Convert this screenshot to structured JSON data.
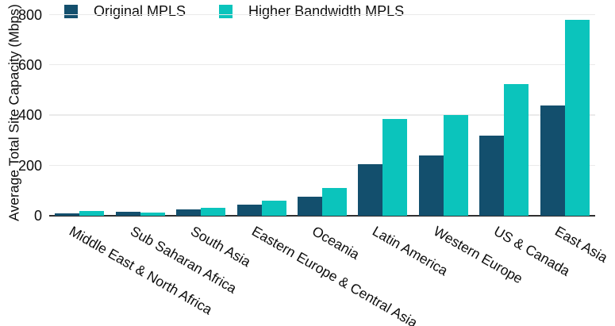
{
  "chart_data": {
    "type": "bar",
    "title": "",
    "xlabel": "",
    "ylabel": "Average Total Site Capacity (Mbps)",
    "ylim": [
      0,
      800
    ],
    "yticks": [
      0,
      200,
      400,
      600,
      800
    ],
    "grid": "horizontal",
    "legend_position": "top-left",
    "categories": [
      "Middle East & North Africa",
      "Sub Saharan Africa",
      "South Asia",
      "Eastern Europe & Central Asia",
      "Oceania",
      "Latin America",
      "Western Europe",
      "US & Canada",
      "East Asia"
    ],
    "series": [
      {
        "name": "Original MPLS",
        "color": "#134f6d",
        "values": [
          10,
          15,
          25,
          45,
          75,
          205,
          240,
          320,
          440
        ]
      },
      {
        "name": "Higher Bandwidth MPLS",
        "color": "#0bc4bc",
        "values": [
          20,
          13,
          32,
          60,
          110,
          385,
          400,
          525,
          780
        ]
      }
    ]
  }
}
